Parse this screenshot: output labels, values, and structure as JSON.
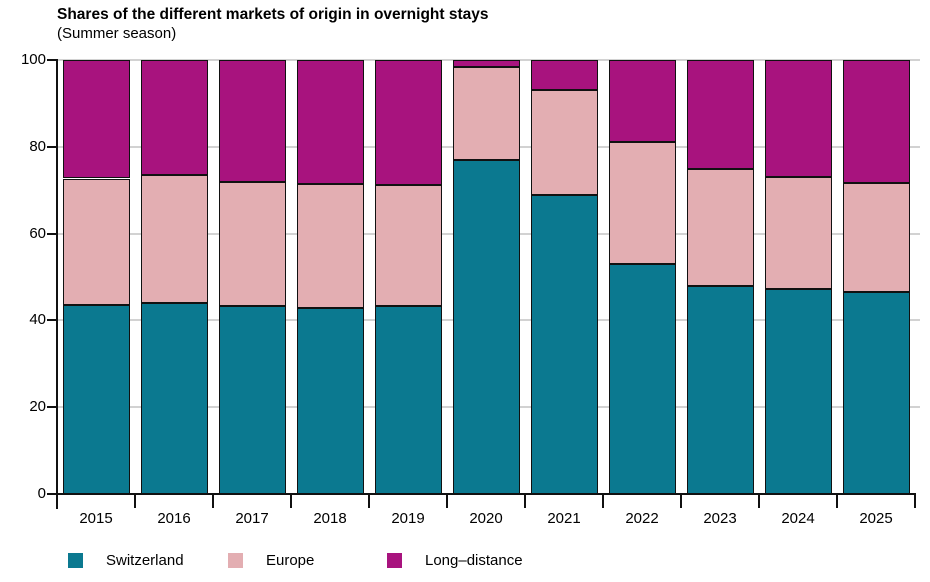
{
  "header": {
    "title": "Shares of the different markets of origin in overnight stays",
    "subtitle": "(Summer season)"
  },
  "colors": {
    "switzerland": "#0b7990",
    "europe": "#e3aeb2",
    "long_distance": "#a8137e",
    "axis": "#111111",
    "grid": "#d2d2d2",
    "text": "#000000",
    "background": "#ffffff"
  },
  "chart_data": {
    "type": "bar",
    "stacked": true,
    "title": "Shares of the different markets of origin in overnight stays",
    "subtitle": "(Summer season)",
    "unit": "percent share of overnight stays",
    "categories": [
      "2015",
      "2016",
      "2017",
      "2018",
      "2019",
      "2020",
      "2021",
      "2022",
      "2023",
      "2024",
      "2025"
    ],
    "series": [
      {
        "name": "Switzerland",
        "color": "#0b7990",
        "values": [
          43.5,
          44.0,
          43.4,
          42.9,
          43.4,
          77.0,
          69.0,
          53.0,
          48.0,
          47.2,
          46.5
        ]
      },
      {
        "name": "Europe",
        "color": "#e3aeb2",
        "values": [
          29.2,
          29.5,
          28.4,
          28.5,
          27.8,
          21.4,
          24.2,
          28.0,
          27.0,
          25.9,
          25.1
        ]
      },
      {
        "name": "Long–distance",
        "color": "#a8137e",
        "values": [
          27.3,
          26.5,
          28.2,
          28.6,
          28.8,
          1.6,
          6.8,
          19.0,
          25.0,
          26.9,
          28.4
        ]
      }
    ],
    "ylim": [
      0,
      100
    ],
    "yticks": [
      "0",
      "20",
      "40",
      "60",
      "80",
      "100"
    ],
    "grid": true,
    "legend_position": "bottom"
  },
  "legend": {
    "items": [
      {
        "label": "Switzerland"
      },
      {
        "label": "Europe"
      },
      {
        "label": "Long–distance"
      }
    ]
  }
}
